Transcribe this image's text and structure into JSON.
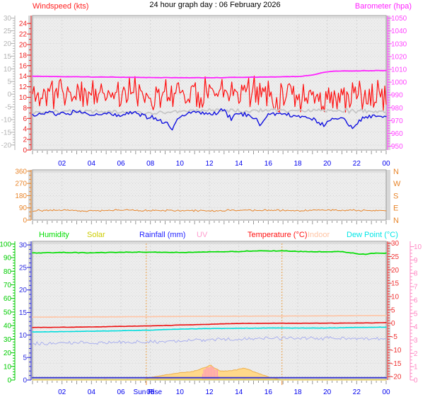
{
  "title": "24 hour graph day : 06 February 2026",
  "time_axis": {
    "labels": [
      "02",
      "04",
      "06",
      "08",
      "10",
      "12",
      "14",
      "16",
      "18",
      "20",
      "22",
      "00"
    ],
    "color": "#0000ee",
    "tick_color": "#969696"
  },
  "colors": {
    "plot_background": "#ededed",
    "grid": "#d4d4d4",
    "frame": "#9a9a9a",
    "rail": "#d8d8d8",
    "sun_marker": "#eda24a"
  },
  "chart_data": [
    {
      "id": "wind-and-barometer",
      "type": "line",
      "title_left": "Windspeed (kts)",
      "title_right": "Barometer (hpa)",
      "x_range_hours": [
        0,
        24
      ],
      "axes": {
        "kts": {
          "side": "left-inner",
          "color": "#ee2222",
          "min": 0,
          "max": 25.5,
          "tick_min": 0,
          "tick_max": 24,
          "tick_step": 2,
          "minor_step": 1
        },
        "temp_gray": {
          "side": "left-outer",
          "color": "#b4b4b4",
          "min": -22,
          "max": 31,
          "tick_min": -20,
          "tick_max": 30,
          "tick_step": 5,
          "minor_step": 1
        },
        "hpa": {
          "side": "right-inner",
          "color": "#ff44ff",
          "min": 947,
          "max": 1052,
          "tick_min": 950,
          "tick_max": 1050,
          "tick_step": 10,
          "minor_step": 2
        }
      },
      "series": [
        {
          "name": "wind-gust",
          "axis": "kts",
          "style": "line",
          "color": "#ff1010",
          "width": 1.2,
          "samples": 252,
          "seed": 11,
          "noise": 3.4,
          "spike": [
            0.05,
            4.2
          ],
          "clip": [
            3.6,
            18.6
          ],
          "anchors": [
            [
              0,
              10.5
            ],
            [
              2,
              11
            ],
            [
              4,
              10.6
            ],
            [
              6,
              11
            ],
            [
              8,
              10.6
            ],
            [
              10,
              11
            ],
            [
              12,
              10.6
            ],
            [
              13.5,
              11.6
            ],
            [
              16,
              10.6
            ],
            [
              18,
              10.2
            ],
            [
              20,
              9.6
            ],
            [
              22,
              9.9
            ],
            [
              24,
              10.1
            ]
          ]
        },
        {
          "name": "wind-average",
          "axis": "kts",
          "style": "line",
          "color": "#c6c6c6",
          "width": 1.8,
          "samples": 200,
          "seed": 21,
          "noise": 0.5,
          "clip": [
            5,
            9.5
          ],
          "anchors": [
            [
              0,
              7.1
            ],
            [
              4,
              7.4
            ],
            [
              8,
              7.0
            ],
            [
              12,
              7.5
            ],
            [
              16,
              7.5
            ],
            [
              20,
              7.6
            ],
            [
              24,
              7.2
            ]
          ]
        },
        {
          "name": "wind-speed",
          "axis": "kts",
          "style": "line",
          "color": "#1010e0",
          "width": 1.4,
          "samples": 210,
          "seed": 31,
          "noise": 0.55,
          "clip": [
            3.2,
            9.8
          ],
          "anchors": [
            [
              0,
              6.5
            ],
            [
              1,
              7
            ],
            [
              2,
              6.8
            ],
            [
              3,
              7.2
            ],
            [
              4,
              6.5
            ],
            [
              5,
              7
            ],
            [
              6,
              6.6
            ],
            [
              7,
              7.2
            ],
            [
              8,
              6.2
            ],
            [
              9,
              5.2
            ],
            [
              9.5,
              4.2
            ],
            [
              10,
              6.5
            ],
            [
              11,
              7.4
            ],
            [
              12,
              6.8
            ],
            [
              13,
              7.5
            ],
            [
              13.5,
              6
            ],
            [
              14,
              7.2
            ],
            [
              15,
              6.2
            ],
            [
              15.5,
              4.8
            ],
            [
              16,
              6.8
            ],
            [
              17,
              7
            ],
            [
              18,
              6.4
            ],
            [
              19,
              6
            ],
            [
              19.8,
              4.6
            ],
            [
              20.3,
              5.8
            ],
            [
              21,
              6.2
            ],
            [
              21.8,
              4.2
            ],
            [
              22.3,
              6
            ],
            [
              23,
              6.4
            ],
            [
              24,
              6.2
            ]
          ]
        },
        {
          "name": "barometer",
          "axis": "hpa",
          "style": "line",
          "color": "#ff22ff",
          "width": 1.8,
          "samples": 140,
          "seed": 41,
          "noise": 0.18,
          "anchors": [
            [
              0,
              1004.6
            ],
            [
              4,
              1004.1
            ],
            [
              8,
              1003.6
            ],
            [
              12,
              1003.4
            ],
            [
              14,
              1003.8
            ],
            [
              16,
              1004
            ],
            [
              18,
              1004.4
            ],
            [
              19,
              1005.5
            ],
            [
              19.8,
              1007.8
            ],
            [
              20.5,
              1008.6
            ],
            [
              22,
              1008.8
            ],
            [
              24,
              1009.2
            ]
          ]
        }
      ]
    },
    {
      "id": "wind-direction",
      "type": "line",
      "axes": {
        "degrees": {
          "side": "left-inner",
          "color": "#e8862c",
          "min": 0,
          "max": 370,
          "tick_min": 0,
          "tick_max": 360,
          "tick_step": 90,
          "minor_step": 30
        },
        "compass": {
          "side": "right-letters",
          "ref": "degrees",
          "color": "#e8862c",
          "values": [
            360,
            270,
            180,
            90,
            0
          ],
          "labels": [
            "N",
            "W",
            "S",
            "E",
            "N"
          ]
        }
      },
      "series": [
        {
          "name": "wind-bearing",
          "axis": "degrees",
          "style": "line",
          "color": "#e8862c",
          "width": 1,
          "samples": 250,
          "seed": 51,
          "noise": 8,
          "clip": [
            35,
            115
          ],
          "anchors": [
            [
              0,
              70
            ],
            [
              2,
              73
            ],
            [
              4,
              68
            ],
            [
              6,
              74
            ],
            [
              8,
              70
            ],
            [
              10,
              72
            ],
            [
              12,
              69
            ],
            [
              14,
              74
            ],
            [
              16,
              71
            ],
            [
              18,
              69
            ],
            [
              20,
              74
            ],
            [
              22,
              70
            ],
            [
              24,
              72
            ]
          ]
        }
      ]
    },
    {
      "id": "climate",
      "type": "line",
      "legend": [
        {
          "label": "Humidity",
          "color": "#00dd00"
        },
        {
          "label": "Solar",
          "color": "#cccc00"
        },
        {
          "label": "Rainfall (mm)",
          "color": "#2222ff"
        },
        {
          "label": "UV",
          "color": "#ff9cce"
        },
        {
          "label": "Temperature (°C)",
          "color": "#ff1010"
        },
        {
          "label": "Indoor",
          "color": "#ffc4a4"
        },
        {
          "label": "Dew Point (°C)",
          "color": "#00e6e6"
        }
      ],
      "axes": {
        "humidity": {
          "side": "left-outer",
          "color": "#00cc00",
          "min": 0,
          "max": 102,
          "tick_min": 0,
          "tick_max": 100,
          "tick_step": 10,
          "minor_step": 2
        },
        "rain": {
          "side": "left-inner",
          "color": "#2a2ae0",
          "min": 0,
          "max": 30.8,
          "tick_min": 0,
          "tick_max": 30,
          "tick_step": 5,
          "minor_step": 1
        },
        "temp": {
          "side": "right-inner",
          "color": "#ee3333",
          "min": -21.3,
          "max": 30.7,
          "tick_min": -20,
          "tick_max": 30,
          "tick_step": 5,
          "minor_step": 1
        },
        "uv": {
          "side": "right-outer",
          "color": "#ff8ac4",
          "min": 0,
          "max": 10.4,
          "tick_min": 0,
          "tick_max": 10,
          "tick_step": 1,
          "minor_step": 0.25
        },
        "solar_wm2": {
          "side": "none",
          "min": 0,
          "max": 1000
        }
      },
      "markers": [
        {
          "hour": 7.72,
          "label": "Sun Rise"
        },
        {
          "hour": 16.93,
          "label": ""
        }
      ],
      "series": [
        {
          "name": "solar",
          "axis": "solar_wm2",
          "style": "area",
          "fill": "#ffd88a",
          "color": "#eeb050",
          "width": 1,
          "samples": 220,
          "seed": 61,
          "noise": 7,
          "noise_rel": 110,
          "clip": [
            0,
            1000
          ],
          "anchors": [
            [
              0,
              0
            ],
            [
              7.5,
              0
            ],
            [
              8,
              18
            ],
            [
              9,
              36
            ],
            [
              10,
              52
            ],
            [
              10.7,
              58
            ],
            [
              11.2,
              72
            ],
            [
              11.7,
              90
            ],
            [
              12.05,
              110
            ],
            [
              12.4,
              84
            ],
            [
              12.8,
              62
            ],
            [
              13.3,
              66
            ],
            [
              13.8,
              72
            ],
            [
              14.3,
              88
            ],
            [
              14.7,
              74
            ],
            [
              15.1,
              56
            ],
            [
              15.6,
              38
            ],
            [
              16.1,
              20
            ],
            [
              16.6,
              8
            ],
            [
              16.95,
              0
            ],
            [
              24,
              0
            ]
          ]
        },
        {
          "name": "uv-index",
          "axis": "uv",
          "style": "bars",
          "color": "#ff8ac4",
          "width": 1,
          "samples": 260,
          "seed": 71,
          "noise": 0.12,
          "clip": [
            0,
            1.15
          ],
          "anchors": [
            [
              0,
              0
            ],
            [
              11.45,
              0
            ],
            [
              11.6,
              0.75
            ],
            [
              11.8,
              1
            ],
            [
              12,
              0.9
            ],
            [
              12.15,
              1.05
            ],
            [
              12.35,
              0.85
            ],
            [
              12.55,
              0.8
            ],
            [
              12.7,
              0
            ],
            [
              24,
              0
            ]
          ]
        },
        {
          "name": "wind-chill-lavender",
          "axis": "temp",
          "style": "line",
          "color": "#aab0ee",
          "width": 1,
          "samples": 240,
          "seed": 81,
          "noise": 0.8,
          "anchors": [
            [
              0,
              -7.6
            ],
            [
              4,
              -7.3
            ],
            [
              8,
              -7
            ],
            [
              12,
              -6.3
            ],
            [
              16,
              -5.6
            ],
            [
              20,
              -5.6
            ],
            [
              24,
              -5.8
            ]
          ]
        },
        {
          "name": "indoor",
          "axis": "temp",
          "style": "line",
          "color": "#ffc4a4",
          "width": 1.6,
          "samples": 140,
          "seed": 91,
          "noise": 0.05,
          "anchors": [
            [
              0,
              2.3
            ],
            [
              6,
              2.4
            ],
            [
              12,
              2.6
            ],
            [
              18,
              2.7
            ],
            [
              24,
              2.9
            ]
          ]
        },
        {
          "name": "temperature",
          "axis": "temp",
          "style": "line",
          "color": "#ee1111",
          "width": 1.6,
          "samples": 170,
          "seed": 101,
          "noise": 0.07,
          "anchors": [
            [
              0,
              -1.6
            ],
            [
              4,
              -1.4
            ],
            [
              8,
              -1
            ],
            [
              12,
              -0.4
            ],
            [
              14,
              -0.1
            ],
            [
              16,
              0
            ],
            [
              20,
              0
            ],
            [
              24,
              0.2
            ]
          ]
        },
        {
          "name": "dew-point",
          "axis": "temp",
          "style": "line",
          "color": "#00dddd",
          "width": 1.6,
          "samples": 170,
          "seed": 111,
          "noise": 0.07,
          "anchors": [
            [
              0,
              -3.3
            ],
            [
              4,
              -3
            ],
            [
              8,
              -2.6
            ],
            [
              10,
              -2.2
            ],
            [
              12,
              -2
            ],
            [
              14,
              -1.9
            ],
            [
              16,
              -1.8
            ],
            [
              20,
              -1.8
            ],
            [
              22,
              -1.6
            ],
            [
              24,
              -1.5
            ]
          ]
        },
        {
          "name": "humidity",
          "axis": "humidity",
          "style": "line",
          "color": "#00dd00",
          "width": 1.7,
          "samples": 170,
          "seed": 121,
          "noise": 0.3,
          "anchors": [
            [
              0,
              93.5
            ],
            [
              2,
              93.8
            ],
            [
              4,
              93.5
            ],
            [
              6,
              94
            ],
            [
              8,
              94
            ],
            [
              10,
              93.8
            ],
            [
              12,
              94.2
            ],
            [
              14,
              94.5
            ],
            [
              15,
              95
            ],
            [
              16,
              94.8
            ],
            [
              17,
              95
            ],
            [
              18,
              94.5
            ],
            [
              20,
              94.2
            ],
            [
              21,
              94.5
            ],
            [
              22,
              92.8
            ],
            [
              22.6,
              92.5
            ],
            [
              23.2,
              93.2
            ],
            [
              24,
              93.3
            ]
          ]
        },
        {
          "name": "rainfall",
          "axis": "rain",
          "style": "line",
          "color": "#3a3acc",
          "width": 2,
          "samples": 60,
          "seed": 131,
          "noise": 0,
          "anchors": [
            [
              0,
              0.5
            ],
            [
              24,
              0.5
            ]
          ]
        },
        {
          "name": "solar-baseline",
          "axis": "rain",
          "style": "line",
          "color": "#d8cc55",
          "width": 1.4,
          "samples": 10,
          "seed": 141,
          "noise": 0,
          "anchors": [
            [
              0,
              0.08
            ],
            [
              24,
              0.08
            ]
          ]
        }
      ]
    }
  ]
}
